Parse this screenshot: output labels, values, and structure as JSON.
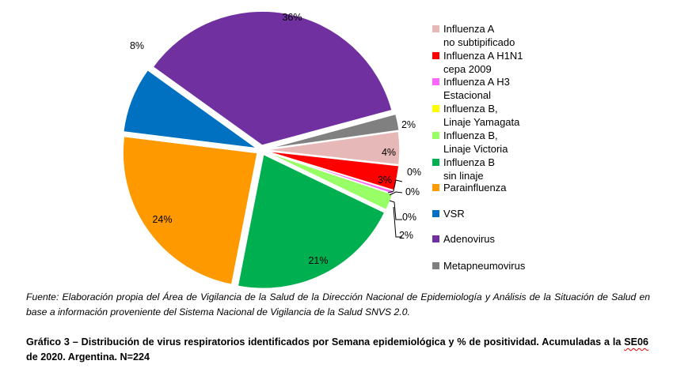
{
  "chart_data": {
    "type": "pie",
    "title": "",
    "unit": "%",
    "categories": [
      {
        "name": "Influenza A no subtipificado",
        "lines": [
          "Influenza A",
          "no subtipificado"
        ],
        "value": 4,
        "label": "4%",
        "color": "#e6b8b7"
      },
      {
        "name": "Influenza A H1N1 cepa 2009",
        "lines": [
          "Influenza A H1N1",
          "cepa 2009"
        ],
        "value": 3,
        "label": "3%",
        "color": "#ff0000"
      },
      {
        "name": "Influenza A H3 Estacional",
        "lines": [
          " Influenza A H3",
          "Estacional"
        ],
        "value": 0.4,
        "label": "0%",
        "color": "#ff66ff"
      },
      {
        "name": "Influenza B, Linaje Yamagata",
        "lines": [
          "Influenza B,",
          "Linaje Yamagata"
        ],
        "value": 0,
        "label": "0%",
        "color": "#ffff00"
      },
      {
        "name": "Influenza B, Linaje Victoria",
        "lines": [
          "Influenza B,",
          "Linaje Victoria"
        ],
        "value": 2,
        "label": "2%",
        "color": "#99ff66"
      },
      {
        "name": "Influenza B sin linaje",
        "lines": [
          "Influenza B",
          "sin linaje"
        ],
        "value": 21,
        "label": "21%",
        "color": "#00b050"
      },
      {
        "name": "Parainfluenza",
        "lines": [
          "Parainfluenza"
        ],
        "value": 24,
        "label": "24%",
        "color": "#ff9900"
      },
      {
        "name": "VSR",
        "lines": [
          "VSR"
        ],
        "value": 8,
        "label": "8%",
        "color": "#0070c0"
      },
      {
        "name": "Adenovirus",
        "lines": [
          "Adenovirus"
        ],
        "value": 36,
        "label": "36%",
        "color": "#7030a0"
      },
      {
        "name": "Metapneumovirus",
        "lines": [
          "Metapneumovirus"
        ],
        "value": 2,
        "label": "2%",
        "color": "#808080"
      }
    ],
    "extra_labels": [
      "0%"
    ],
    "legend_position": "right"
  },
  "caption": {
    "source_label": "Fuente:",
    "source_text": " Elaboración propia del Área de Vigilancia de la Salud de la Dirección Nacional de Epidemiología y Análisis de la Situación de Salud en base a información proveniente del Sistema Nacional de Vigilancia de la Salud  SNVS 2.0.",
    "title_before": "Gráfico 3 – Distribución de virus respiratorios identificados por Semana epidemiológica y % de positividad. Acumuladas a la ",
    "title_se": "SE06",
    "title_after": " de 2020. Argentina. N=224"
  }
}
